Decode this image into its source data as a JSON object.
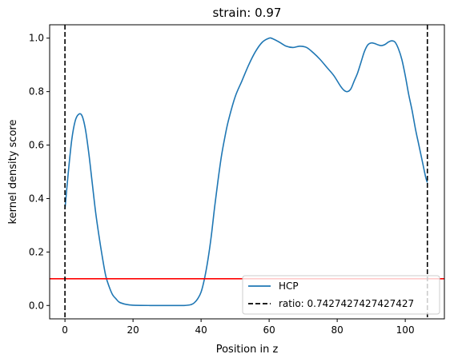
{
  "chart_data": {
    "type": "line",
    "title": "strain: 0.97",
    "xlabel": "Position in z",
    "ylabel": "kernel density score",
    "xlim": [
      -4.5,
      111.5
    ],
    "ylim": [
      -0.05,
      1.05
    ],
    "xticks": [
      0,
      20,
      40,
      60,
      80,
      100
    ],
    "yticks": [
      0.0,
      0.2,
      0.4,
      0.6,
      0.8,
      1.0
    ],
    "xtick_labels": [
      "0",
      "20",
      "40",
      "60",
      "80",
      "100"
    ],
    "ytick_labels": [
      "0.0",
      "0.2",
      "0.4",
      "0.6",
      "0.8",
      "1.0"
    ],
    "grid": false,
    "legend_position": "lower right",
    "series": [
      {
        "name": "HCP",
        "color": "#1f77b4",
        "style": "solid",
        "x": [
          0,
          1,
          2,
          3,
          4,
          5,
          6,
          7,
          8,
          9,
          10,
          11,
          12,
          13,
          14,
          15,
          16,
          18,
          20,
          25,
          30,
          35,
          37,
          38,
          39,
          40,
          41,
          42,
          43,
          44,
          45,
          46,
          47,
          48,
          50,
          52,
          54,
          56,
          58,
          60,
          61,
          63,
          65,
          67,
          69,
          71,
          73,
          75,
          77,
          79,
          81,
          82,
          83,
          84,
          85,
          86,
          87,
          88,
          89,
          90,
          91,
          92,
          93,
          94,
          95,
          96,
          97,
          98,
          99,
          100,
          101,
          102,
          103,
          104,
          105,
          106,
          106.5
        ],
        "y": [
          0.36,
          0.5,
          0.62,
          0.69,
          0.715,
          0.71,
          0.66,
          0.57,
          0.46,
          0.35,
          0.26,
          0.18,
          0.11,
          0.07,
          0.04,
          0.025,
          0.012,
          0.004,
          0.001,
          0.0,
          0.0,
          0.0,
          0.003,
          0.01,
          0.025,
          0.05,
          0.1,
          0.17,
          0.26,
          0.37,
          0.47,
          0.56,
          0.63,
          0.69,
          0.78,
          0.84,
          0.9,
          0.95,
          0.985,
          1.0,
          0.998,
          0.985,
          0.97,
          0.965,
          0.97,
          0.965,
          0.945,
          0.92,
          0.89,
          0.86,
          0.82,
          0.805,
          0.8,
          0.81,
          0.84,
          0.87,
          0.91,
          0.95,
          0.975,
          0.982,
          0.98,
          0.975,
          0.972,
          0.976,
          0.985,
          0.99,
          0.985,
          0.96,
          0.92,
          0.86,
          0.79,
          0.73,
          0.66,
          0.6,
          0.54,
          0.48,
          0.46
        ]
      },
      {
        "name": "ratio: 0.7427427427427427",
        "color": "#000000",
        "style": "dashed",
        "vlines": [
          0,
          106.5
        ]
      }
    ],
    "hline": {
      "y": 0.1,
      "color": "#ff0000"
    }
  }
}
